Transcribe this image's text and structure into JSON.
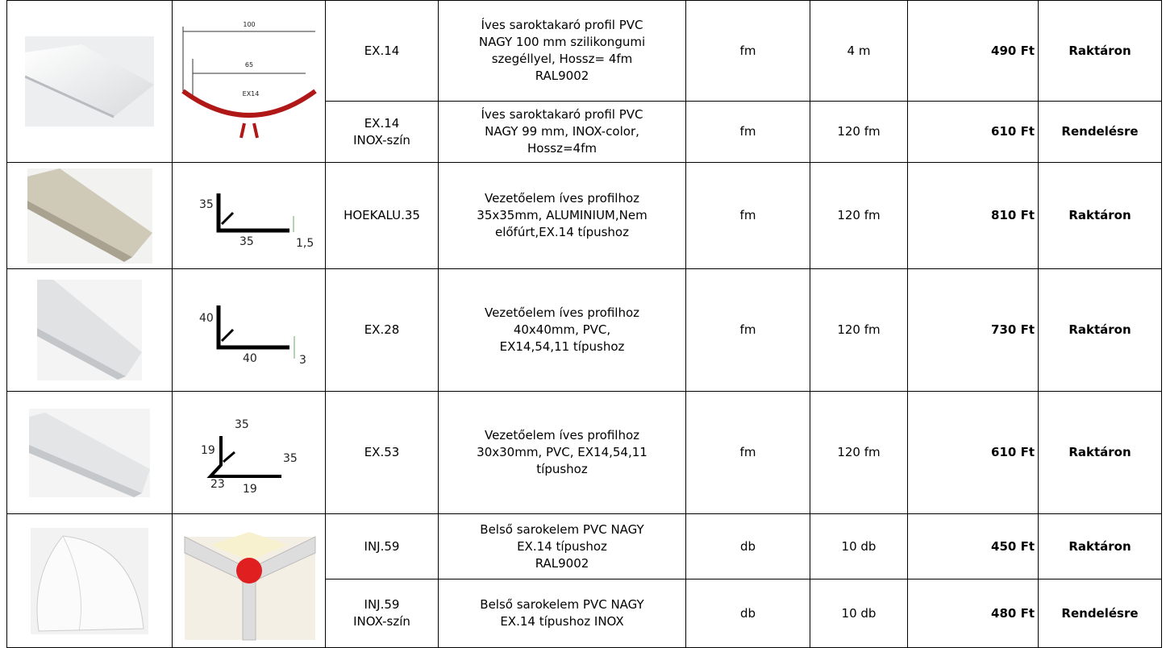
{
  "table": {
    "rows": [
      {
        "code": [
          "EX.14"
        ],
        "description": [
          "Íves saroktakaró profil PVC",
          "NAGY 100 mm szilikongumi",
          "szegéllyel, Hossz= 4fm",
          "RAL9002"
        ],
        "unit": "fm",
        "quantity": "4 m",
        "price": "490 Ft",
        "status": "Raktáron"
      },
      {
        "code": [
          "EX.14",
          "INOX-szín"
        ],
        "description": [
          "Íves saroktakaró profil PVC",
          "NAGY 99 mm, INOX-color,",
          "Hossz=4fm"
        ],
        "unit": "fm",
        "quantity": "120 fm",
        "price": "610 Ft",
        "status": "Rendelésre"
      },
      {
        "code": [
          "HOEKALU.35"
        ],
        "description": [
          "Vezetőelem íves profilhoz",
          "35x35mm, ALUMINIUM,Nem",
          "előfúrt,EX.14 típushoz"
        ],
        "unit": "fm",
        "quantity": "120 fm",
        "price": "810 Ft",
        "status": "Raktáron"
      },
      {
        "code": [
          "EX.28"
        ],
        "description": [
          "Vezetőelem íves profilhoz",
          "40x40mm, PVC,",
          "EX14,54,11  típushoz"
        ],
        "unit": "fm",
        "quantity": "120 fm",
        "price": "730 Ft",
        "status": "Raktáron"
      },
      {
        "code": [
          "EX.53"
        ],
        "description": [
          "Vezetőelem íves profilhoz",
          "30x30mm, PVC,  EX14,54,11",
          "típushoz"
        ],
        "unit": "fm",
        "quantity": "120 fm",
        "price": "610 Ft",
        "status": "Raktáron"
      },
      {
        "code": [
          "INJ.59"
        ],
        "description": [
          "Belső sarokelem PVC NAGY",
          "EX.14 típushoz",
          "RAL9002"
        ],
        "unit": "db",
        "quantity": "10 db",
        "price": "450 Ft",
        "status": "Raktáron"
      },
      {
        "code": [
          "INJ.59",
          "INOX-szín"
        ],
        "description": [
          "Belső sarokelem PVC NAGY",
          "EX.14 típushoz INOX"
        ],
        "unit": "db",
        "quantity": "10 db",
        "price": "480 Ft",
        "status": "Rendelésre"
      }
    ],
    "drawings": {
      "ex14": [
        "100",
        "65",
        "EX14"
      ],
      "hoek": [
        "35",
        "35",
        "1,5"
      ],
      "ex28": [
        "40",
        "40",
        "3"
      ],
      "ex53": [
        "35",
        "19",
        "35",
        "23",
        "19"
      ]
    }
  }
}
